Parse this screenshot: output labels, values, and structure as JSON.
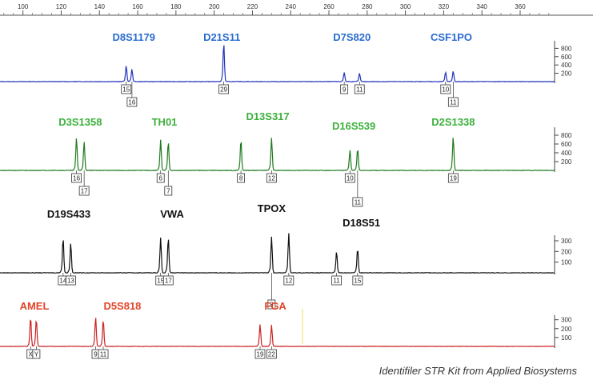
{
  "caption": "Identifiler STR Kit from Applied Biosystems",
  "chart_data": {
    "type": "line",
    "x_axis": {
      "range": [
        88,
        378
      ],
      "ticks": [
        100,
        120,
        140,
        160,
        180,
        200,
        220,
        240,
        260,
        280,
        300,
        320,
        340,
        360
      ]
    },
    "panels": [
      {
        "color": "#2233bb",
        "label_color": "#2a6bd0",
        "y_ticks": [
          200,
          400,
          600,
          800
        ],
        "y_max": 1000,
        "loci": [
          {
            "name": "D8S1179",
            "label_x": 158
          },
          {
            "name": "D21S11",
            "label_x": 204
          },
          {
            "name": "D7S820",
            "label_x": 272
          },
          {
            "name": "CSF1PO",
            "label_x": 324
          }
        ],
        "peaks": [
          {
            "x": 154,
            "height": 380,
            "allele": "15",
            "box_row": 0
          },
          {
            "x": 157,
            "height": 300,
            "allele": "16",
            "box_row": 1
          },
          {
            "x": 205,
            "height": 930,
            "allele": "29",
            "box_row": 0
          },
          {
            "x": 268,
            "height": 220,
            "allele": "9",
            "box_row": 0
          },
          {
            "x": 276,
            "height": 200,
            "allele": "11",
            "box_row": 0
          },
          {
            "x": 321,
            "height": 230,
            "allele": "10",
            "box_row": 0
          },
          {
            "x": 325,
            "height": 250,
            "allele": "11",
            "box_row": 1
          }
        ]
      },
      {
        "color": "#1e7a1e",
        "label_color": "#3cb03c",
        "y_ticks": [
          200,
          400,
          600,
          800
        ],
        "y_max": 1000,
        "loci": [
          {
            "name": "D3S1358",
            "label_x": 130
          },
          {
            "name": "TH01",
            "label_x": 174
          },
          {
            "name": "D13S317",
            "label_x": 228
          },
          {
            "name": "D16S539",
            "label_x": 273
          },
          {
            "name": "D2S1338",
            "label_x": 325
          }
        ],
        "peaks": [
          {
            "x": 128,
            "height": 750,
            "allele": "16",
            "box_row": 0
          },
          {
            "x": 132,
            "height": 650,
            "allele": "17",
            "box_row": 1
          },
          {
            "x": 172,
            "height": 700,
            "allele": "6",
            "box_row": 0
          },
          {
            "x": 176,
            "height": 650,
            "allele": "7",
            "box_row": 1
          },
          {
            "x": 214,
            "height": 700,
            "allele": "8",
            "box_row": 0
          },
          {
            "x": 230,
            "height": 740,
            "allele": "12",
            "box_row": 0
          },
          {
            "x": 271,
            "height": 460,
            "allele": "10",
            "box_row": 0
          },
          {
            "x": 275,
            "height": 500,
            "allele": "11",
            "box_row": 2
          },
          {
            "x": 325,
            "height": 770,
            "allele": "19",
            "box_row": 0
          }
        ]
      },
      {
        "color": "#111111",
        "label_color": "#111111",
        "y_ticks": [
          100,
          200,
          300
        ],
        "y_max": 360,
        "loci": [
          {
            "name": "D19S433",
            "label_x": 124
          },
          {
            "name": "VWA",
            "label_x": 178
          },
          {
            "name": "TPOX",
            "label_x": 230
          },
          {
            "name": "D18S51",
            "label_x": 277
          }
        ],
        "peaks": [
          {
            "x": 121,
            "height": 330,
            "allele": "14",
            "box_row": 0
          },
          {
            "x": 125,
            "height": 280,
            "allele": "13",
            "box_row": 0
          },
          {
            "x": 172,
            "height": 330,
            "allele": "15",
            "box_row": 0
          },
          {
            "x": 176,
            "height": 330,
            "allele": "17",
            "box_row": 0
          },
          {
            "x": 230,
            "height": 340,
            "allele": "8",
            "box_row": 2
          },
          {
            "x": 239,
            "height": 370,
            "allele": "12",
            "box_row": 0
          },
          {
            "x": 264,
            "height": 200,
            "allele": "11",
            "box_row": 0
          },
          {
            "x": 275,
            "height": 230,
            "allele": "15",
            "box_row": 0
          }
        ]
      },
      {
        "color": "#cc2222",
        "label_color": "#e2452a",
        "y_ticks": [
          100,
          200,
          300
        ],
        "y_max": 360,
        "loci": [
          {
            "name": "AMEL",
            "label_x": 106
          },
          {
            "name": "D5S818",
            "label_x": 152
          },
          {
            "name": "FGA",
            "label_x": 232
          }
        ],
        "peaks": [
          {
            "x": 104,
            "height": 330,
            "allele": "X",
            "box_row": 0
          },
          {
            "x": 107,
            "height": 310,
            "allele": "Y",
            "box_row": 0
          },
          {
            "x": 138,
            "height": 330,
            "allele": "9",
            "box_row": 0
          },
          {
            "x": 142,
            "height": 300,
            "allele": "11",
            "box_row": 0
          },
          {
            "x": 224,
            "height": 250,
            "allele": "19",
            "box_row": 0
          },
          {
            "x": 230,
            "height": 240,
            "allele": "22",
            "box_row": 0
          }
        ]
      }
    ]
  }
}
